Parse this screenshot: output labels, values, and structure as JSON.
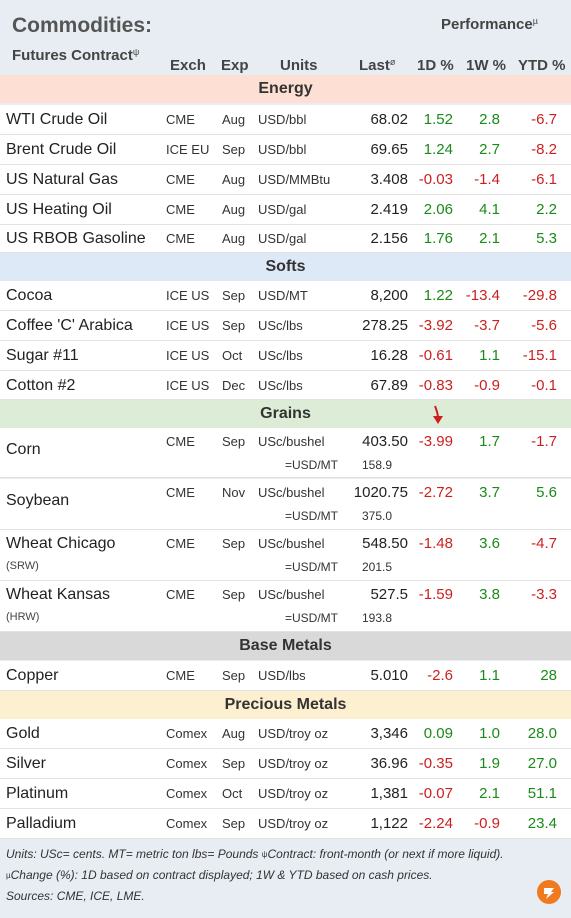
{
  "header": {
    "title": "Commodities:",
    "subtitle": "Futures Contract",
    "subtitle_mark": "ψ",
    "performance": "Performance",
    "performance_mark": "µ"
  },
  "columns": {
    "exch": "Exch",
    "exp": "Exp",
    "units": "Units",
    "last": "Last",
    "last_mark": "ø",
    "d1": "1D %",
    "w1": "1W %",
    "ytd": "YTD %"
  },
  "colors": {
    "energy": "#fde0d3",
    "softs": "#dde9f6",
    "grains": "#dcecd6",
    "base_metals": "#d9d9d9",
    "precious_metals": "#fdf0d0",
    "positive": "#1a8a1a",
    "negative": "#cc1f1f"
  },
  "sections": {
    "energy": "Energy",
    "softs": "Softs",
    "grains": "Grains",
    "base_metals": "Base Metals",
    "precious_metals": "Precious Metals"
  },
  "rows": [
    {
      "name": "WTI Crude Oil",
      "exch": "CME",
      "exp": "Aug",
      "units": "USD/bbl",
      "last": "68.02",
      "d1": "1.52",
      "w1": "2.8",
      "ytd": "-6.7"
    },
    {
      "name": "Brent Crude Oil",
      "exch": "ICE EU",
      "exp": "Sep",
      "units": "USD/bbl",
      "last": "69.65",
      "d1": "1.24",
      "w1": "2.7",
      "ytd": "-8.2"
    },
    {
      "name": "US Natural Gas",
      "exch": "CME",
      "exp": "Aug",
      "units": "USD/MMBtu",
      "last": "3.408",
      "d1": "-0.03",
      "w1": "-1.4",
      "ytd": "-6.1"
    },
    {
      "name": "US Heating Oil",
      "exch": "CME",
      "exp": "Aug",
      "units": "USD/gal",
      "last": "2.419",
      "d1": "2.06",
      "w1": "4.1",
      "ytd": "2.2"
    },
    {
      "name": "US RBOB Gasoline",
      "exch": "CME",
      "exp": "Aug",
      "units": "USD/gal",
      "last": "2.156",
      "d1": "1.76",
      "w1": "2.1",
      "ytd": "5.3"
    },
    {
      "name": "Cocoa",
      "exch": "ICE US",
      "exp": "Sep",
      "units": "USD/MT",
      "last": "8,200",
      "d1": "1.22",
      "w1": "-13.4",
      "ytd": "-29.8"
    },
    {
      "name": "Coffee 'C' Arabica",
      "exch": "ICE US",
      "exp": "Sep",
      "units": "USc/lbs",
      "last": "278.25",
      "d1": "-3.92",
      "w1": "-3.7",
      "ytd": "-5.6"
    },
    {
      "name": "Sugar #11",
      "exch": "ICE US",
      "exp": "Oct",
      "units": "USc/lbs",
      "last": "16.28",
      "d1": "-0.61",
      "w1": "1.1",
      "ytd": "-15.1"
    },
    {
      "name": "Cotton #2",
      "exch": "ICE US",
      "exp": "Dec",
      "units": "USc/lbs",
      "last": "67.89",
      "d1": "-0.83",
      "w1": "-0.9",
      "ytd": "-0.1"
    },
    {
      "name": "Corn",
      "exch": "CME",
      "exp": "Sep",
      "units": "USc/bushel",
      "last": "403.50",
      "d1": "-3.99",
      "w1": "1.7",
      "ytd": "-1.7",
      "conv_units": "=USD/MT",
      "conv_value": "158.9"
    },
    {
      "name": "Soybean",
      "exch": "CME",
      "exp": "Nov",
      "units": "USc/bushel",
      "last": "1020.75",
      "d1": "-2.72",
      "w1": "3.7",
      "ytd": "5.6",
      "conv_units": "=USD/MT",
      "conv_value": "375.0"
    },
    {
      "name": "Wheat Chicago",
      "sub": "(SRW)",
      "exch": "CME",
      "exp": "Sep",
      "units": "USc/bushel",
      "last": "548.50",
      "d1": "-1.48",
      "w1": "3.6",
      "ytd": "-4.7",
      "conv_units": "=USD/MT",
      "conv_value": "201.5"
    },
    {
      "name": "Wheat Kansas",
      "sub": "(HRW)",
      "exch": "CME",
      "exp": "Sep",
      "units": "USc/bushel",
      "last": "527.5",
      "d1": "-1.59",
      "w1": "3.8",
      "ytd": "-3.3",
      "conv_units": "=USD/MT",
      "conv_value": "193.8"
    },
    {
      "name": "Copper",
      "exch": "CME",
      "exp": "Sep",
      "units": "USD/lbs",
      "last": "5.010",
      "d1": "-2.6",
      "w1": "1.1",
      "ytd": "28"
    },
    {
      "name": "Gold",
      "exch": "Comex",
      "exp": "Aug",
      "units": "USD/troy oz",
      "last": "3,346",
      "d1": "0.09",
      "w1": "1.0",
      "ytd": "28.0"
    },
    {
      "name": "Silver",
      "exch": "Comex",
      "exp": "Sep",
      "units": "USD/troy oz",
      "last": "36.96",
      "d1": "-0.35",
      "w1": "1.9",
      "ytd": "27.0"
    },
    {
      "name": "Platinum",
      "exch": "Comex",
      "exp": "Oct",
      "units": "USD/troy oz",
      "last": "1,381",
      "d1": "-0.07",
      "w1": "2.1",
      "ytd": "51.1"
    },
    {
      "name": "Palladium",
      "exch": "Comex",
      "exp": "Sep",
      "units": "USD/troy oz",
      "last": "1,122",
      "d1": "-2.24",
      "w1": "-0.9",
      "ytd": "23.4"
    }
  ],
  "notes": {
    "line1": "Units: USc= cents.   MT= metric ton   lbs= Pounds  ",
    "line1_mark": "ψ",
    "line1_rest": "Contract: front-month (or next if more liquid).",
    "line2_mark": "µ",
    "line2": "Change (%): 1D based on contract displayed; 1W & YTD based on cash prices.",
    "line3": "Sources: CME, ICE, LME."
  }
}
